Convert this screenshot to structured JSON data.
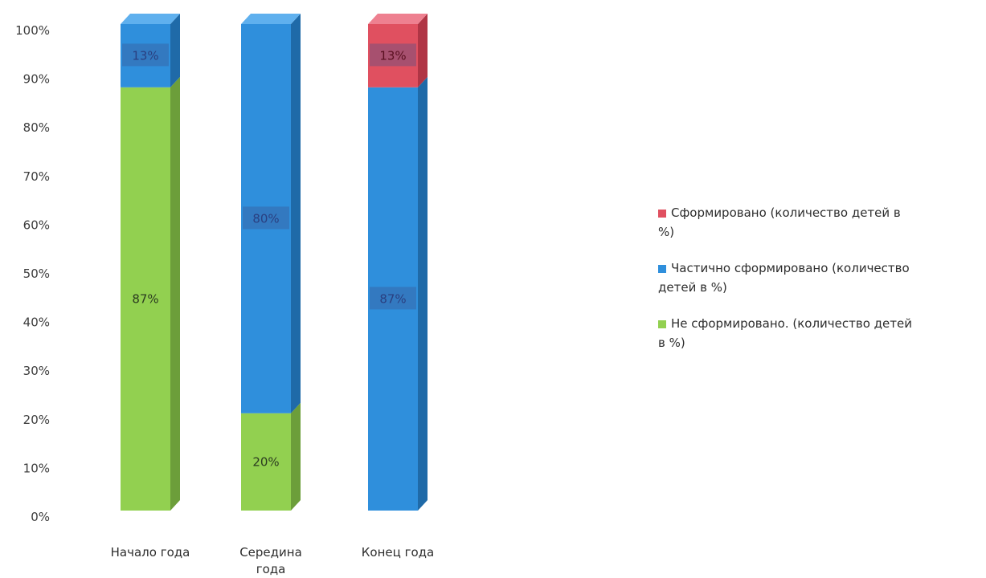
{
  "chart_data": {
    "type": "bar",
    "stacked": true,
    "three_d": true,
    "categories": [
      "Начало года",
      "Середина года",
      "Конец года"
    ],
    "category_label_lines": [
      [
        "Начало года"
      ],
      [
        "Середина",
        "года"
      ],
      [
        "Конец года"
      ]
    ],
    "series": [
      {
        "name": "Не сформировано. (количество детей в %)",
        "legend_lines": [
          "Не сформировано. (количество детей",
          "в %)"
        ],
        "color": "#92d050",
        "side_color": "#6c9e3a",
        "top_color": "#b5e083",
        "values": [
          87,
          20,
          0
        ],
        "labels": [
          "87%",
          "20%",
          ""
        ]
      },
      {
        "name": "Частично сформировано (количество детей в %)",
        "legend_lines": [
          "Частично сформировано (количество",
          "детей в %)"
        ],
        "color": "#2f8fdc",
        "side_color": "#1f6aa8",
        "top_color": "#5fb0ee",
        "values": [
          13,
          80,
          87
        ],
        "labels": [
          "13%",
          "80%",
          "87%"
        ]
      },
      {
        "name": "Сформировано (количество детей в %)",
        "legend_lines": [
          "Сформировано (количество детей в",
          "%)"
        ],
        "color": "#e05060",
        "side_color": "#b03545",
        "top_color": "#ee8090",
        "values": [
          0,
          0,
          13
        ],
        "labels": [
          "",
          "",
          "13%"
        ]
      }
    ],
    "legend_order": [
      2,
      1,
      0
    ],
    "yticks": [
      "0%",
      "10%",
      "20%",
      "30%",
      "40%",
      "50%",
      "60%",
      "70%",
      "80%",
      "90%",
      "100%"
    ],
    "ylim": [
      0,
      100
    ],
    "legend_position": "right",
    "grid": false
  }
}
